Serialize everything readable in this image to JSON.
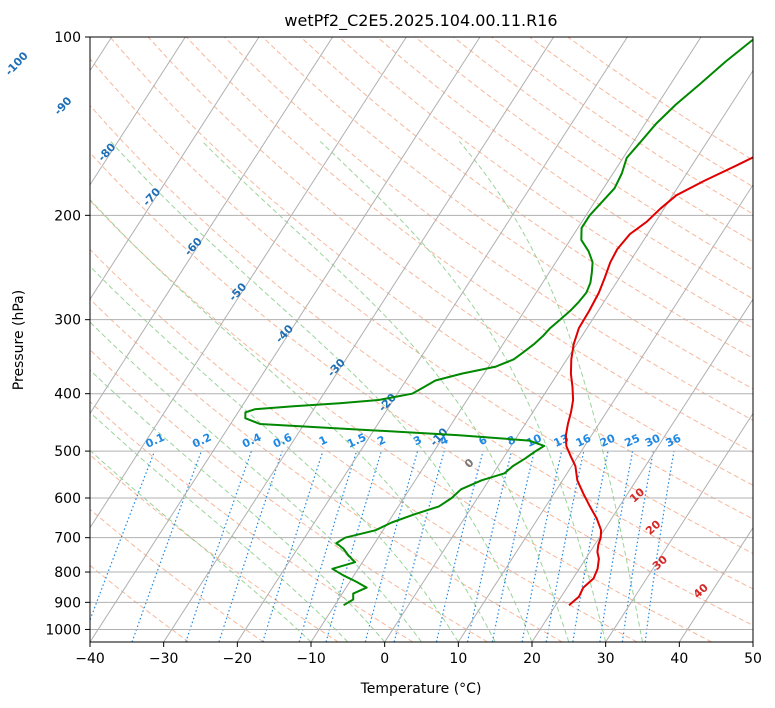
{
  "chart_data": {
    "type": "line",
    "title": "wetPf2_C2E5.2025.104.00.11.R16",
    "xlabel": "Temperature (°C)",
    "ylabel": "Pressure (hPa)",
    "xlim": [
      -40,
      50
    ],
    "ylim": [
      1050,
      100
    ],
    "y_scale": "log",
    "x_ticks": [
      -40,
      -30,
      -20,
      -10,
      0,
      10,
      20,
      30,
      40,
      50
    ],
    "y_ticks": [
      100,
      200,
      300,
      400,
      500,
      600,
      700,
      800,
      900,
      1000
    ],
    "grid": true,
    "series": [
      {
        "color": "#e00000",
        "p": [
          910,
          880,
          850,
          820,
          790,
          760,
          740,
          720,
          700,
          680,
          650,
          620,
          590,
          560,
          530,
          510,
          490,
          470,
          450,
          430,
          410,
          390,
          370,
          350,
          330,
          310,
          290,
          270,
          255,
          240,
          228,
          215,
          205,
          195,
          185,
          175,
          165,
          155,
          145,
          135,
          125,
          115,
          105,
          100
        ],
        "t": [
          21.8,
          22.4,
          22.2,
          22.8,
          22.5,
          21.8,
          21.0,
          20.5,
          20.2,
          19.6,
          18.0,
          16.0,
          14.0,
          12.0,
          10.5,
          9.0,
          7.5,
          6.5,
          5.8,
          5.2,
          4.4,
          3.2,
          1.8,
          0.6,
          -0.4,
          -1.1,
          -1.2,
          -1.5,
          -2.0,
          -2.6,
          -2.8,
          -2.4,
          -1.2,
          -0.5,
          0.5,
          3.0,
          6.0,
          9.0,
          11.5,
          13.5,
          14.5,
          15.5,
          15.8,
          16.0
        ]
      },
      {
        "color": "#008800",
        "p": [
          910,
          890,
          870,
          850,
          830,
          810,
          790,
          770,
          750,
          730,
          715,
          700,
          680,
          660,
          640,
          620,
          600,
          580,
          560,
          545,
          530,
          515,
          500,
          490,
          480,
          470,
          460,
          450,
          440,
          430,
          425,
          420,
          415,
          410,
          400,
          390,
          380,
          370,
          360,
          350,
          340,
          330,
          320,
          310,
          300,
          290,
          280,
          270,
          260,
          250,
          240,
          230,
          220,
          210,
          200,
          190,
          180,
          170,
          160,
          150,
          140,
          130,
          120,
          110,
          100
        ],
        "t": [
          -8.8,
          -8.0,
          -8.5,
          -7.2,
          -9.2,
          -11.5,
          -13.5,
          -11.0,
          -12.5,
          -13.8,
          -15.2,
          -14.5,
          -11.0,
          -9.5,
          -7.2,
          -4.5,
          -3.5,
          -3.0,
          -1.0,
          1.5,
          2.0,
          3.0,
          3.8,
          4.5,
          2.0,
          -8.0,
          -22.0,
          -36.0,
          -38.5,
          -39.0,
          -38.0,
          -33.0,
          -27.0,
          -22.0,
          -18.0,
          -17.0,
          -16.0,
          -13.0,
          -9.0,
          -7.2,
          -6.5,
          -5.8,
          -5.3,
          -5.0,
          -4.4,
          -3.8,
          -3.4,
          -3.2,
          -3.5,
          -4.2,
          -5.0,
          -6.5,
          -8.5,
          -9.5,
          -9.5,
          -9.0,
          -8.5,
          -8.8,
          -9.5,
          -9.0,
          -8.5,
          -7.5,
          -6.0,
          -4.5,
          -2.5
        ]
      }
    ],
    "isotherm_labels": [
      "-100",
      "-90",
      "-80",
      "-70",
      "-60",
      "-50",
      "-40",
      "-30",
      "-20",
      "-10"
    ],
    "mixing_ratio_labels": [
      "0.1",
      "0.2",
      "0.4",
      "0.6",
      "1",
      "1.5",
      "2",
      "3",
      "4",
      "6",
      "8",
      "10",
      "13",
      "16",
      "20",
      "25",
      "30",
      "36"
    ],
    "dry_adiabat_labels": [
      "0",
      "10",
      "20",
      "30",
      "40"
    ],
    "colors": {
      "isotherm_label": "#1f6fb5",
      "mixing_label": "#1e88e5",
      "dry_adiabat_label": "#d62728",
      "grid": "#b0b0b0",
      "dry_adiabat": "#f4a582",
      "moist_adiabat": "#8fcf8f",
      "mixing_ratio": "#1e88e5",
      "frame": "#000000"
    }
  }
}
